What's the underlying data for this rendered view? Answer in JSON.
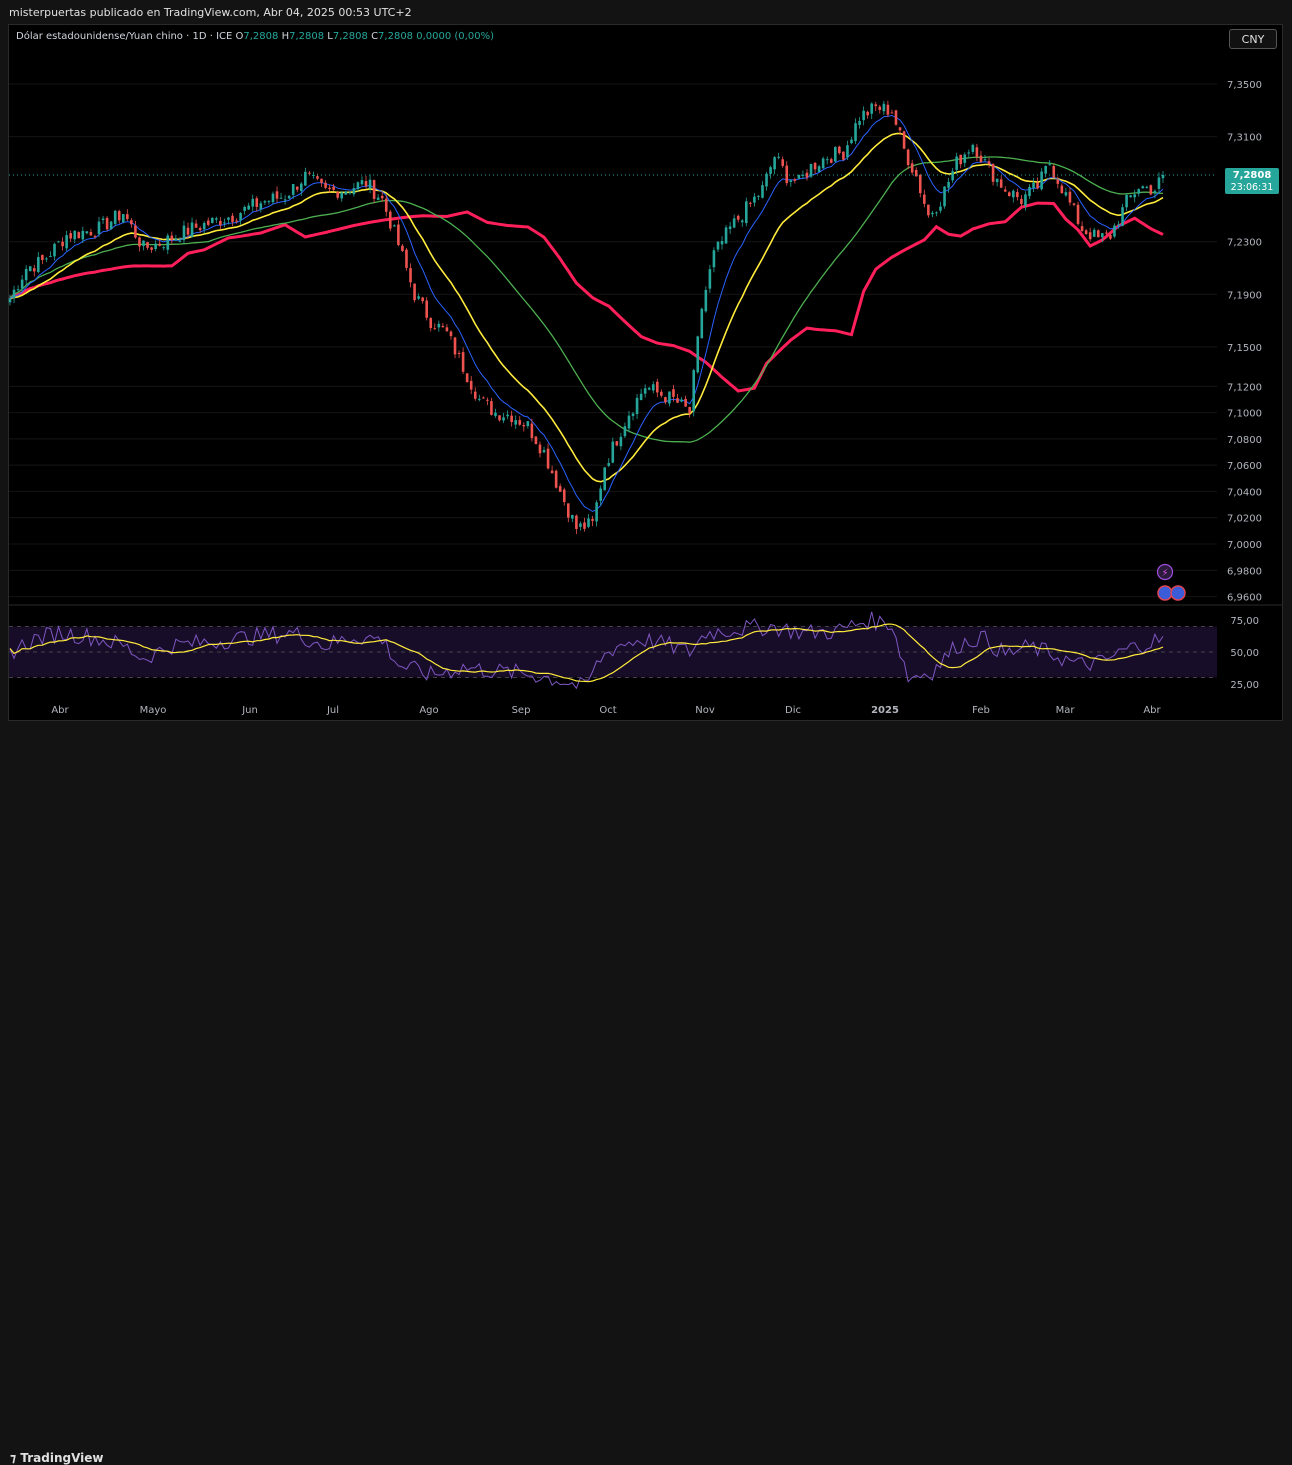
{
  "header": {
    "publisher": "misterpuertas publicado en TradingView.com, Abr 04, 2025 00:53 UTC+2"
  },
  "legend": {
    "symbol": "Dólar estadounidense/Yuan chino · 1D · ICE",
    "o_label": "O",
    "o": "7,2808",
    "h_label": "H",
    "h": "7,2808",
    "l_label": "L",
    "l": "7,2808",
    "c_label": "C",
    "c": "7,2808",
    "change": "0,0000 (0,00%)"
  },
  "currency_button": "CNY",
  "price_tag": {
    "price": "7,2808",
    "countdown": "23:06:31"
  },
  "footer": {
    "brand": "TradingView"
  },
  "colors": {
    "up": "#26a69a",
    "down": "#ef5350",
    "ema_fast": "#2962ff",
    "ema_mid": "#ffeb3b",
    "sma_slow": "#4caf50",
    "sma_long": "#ff1f5a",
    "rsi": "#7e57c2",
    "rsi_ma": "#ffeb3b"
  },
  "icons": [
    "lightning-icon",
    "flag-icon"
  ],
  "chart_data": {
    "type": "candlestick",
    "price_axis_ticks": [
      "7,3500",
      "7,3100",
      "7,2300",
      "7,1900",
      "7,1500",
      "7,1200",
      "7,1000",
      "7,0800",
      "7,0600",
      "7,0400",
      "7,0200",
      "7,0000",
      "6,9800",
      "6,9600"
    ],
    "rsi_axis_ticks": [
      "75,00",
      "50,00",
      "25,00"
    ],
    "time_ticks": [
      "Abr",
      "Mayo",
      "Jun",
      "Jul",
      "Ago",
      "Sep",
      "Oct",
      "Nov",
      "Dic",
      "2025",
      "Feb",
      "Mar",
      "Abr"
    ],
    "price_keypoints": [
      [
        0,
        7.187
      ],
      [
        4,
        7.21
      ],
      [
        8,
        7.215
      ],
      [
        14,
        7.235
      ],
      [
        22,
        7.24
      ],
      [
        28,
        7.252
      ],
      [
        33,
        7.225
      ],
      [
        38,
        7.23
      ],
      [
        45,
        7.24
      ],
      [
        55,
        7.25
      ],
      [
        62,
        7.26
      ],
      [
        68,
        7.265
      ],
      [
        73,
        7.28
      ],
      [
        78,
        7.268
      ],
      [
        83,
        7.27
      ],
      [
        88,
        7.275
      ],
      [
        92,
        7.262
      ],
      [
        96,
        7.228
      ],
      [
        100,
        7.19
      ],
      [
        104,
        7.17
      ],
      [
        108,
        7.16
      ],
      [
        112,
        7.135
      ],
      [
        116,
        7.11
      ],
      [
        120,
        7.1
      ],
      [
        124,
        7.098
      ],
      [
        128,
        7.09
      ],
      [
        132,
        7.07
      ],
      [
        136,
        7.04
      ],
      [
        140,
        7.012
      ],
      [
        144,
        7.015
      ],
      [
        147,
        7.06
      ],
      [
        150,
        7.08
      ],
      [
        153,
        7.1
      ],
      [
        157,
        7.12
      ],
      [
        160,
        7.115
      ],
      [
        164,
        7.11
      ],
      [
        168,
        7.1
      ],
      [
        171,
        7.18
      ],
      [
        174,
        7.22
      ],
      [
        178,
        7.24
      ],
      [
        182,
        7.255
      ],
      [
        186,
        7.27
      ],
      [
        189,
        7.295
      ],
      [
        192,
        7.28
      ],
      [
        195,
        7.275
      ],
      [
        198,
        7.287
      ],
      [
        202,
        7.295
      ],
      [
        206,
        7.298
      ],
      [
        210,
        7.325
      ],
      [
        214,
        7.332
      ],
      [
        218,
        7.33
      ],
      [
        221,
        7.3
      ],
      [
        224,
        7.28
      ],
      [
        227,
        7.25
      ],
      [
        230,
        7.262
      ],
      [
        234,
        7.29
      ],
      [
        238,
        7.305
      ],
      [
        242,
        7.285
      ],
      [
        246,
        7.27
      ],
      [
        250,
        7.262
      ],
      [
        254,
        7.272
      ],
      [
        257,
        7.29
      ],
      [
        261,
        7.265
      ],
      [
        265,
        7.24
      ],
      [
        269,
        7.232
      ],
      [
        272,
        7.235
      ],
      [
        276,
        7.26
      ],
      [
        279,
        7.272
      ],
      [
        283,
        7.27
      ],
      [
        285,
        7.28
      ]
    ],
    "rsi_keypoints": [
      [
        0,
        50
      ],
      [
        6,
        60
      ],
      [
        12,
        65
      ],
      [
        20,
        62
      ],
      [
        28,
        55
      ],
      [
        33,
        45
      ],
      [
        40,
        55
      ],
      [
        50,
        58
      ],
      [
        60,
        62
      ],
      [
        70,
        65
      ],
      [
        78,
        55
      ],
      [
        85,
        62
      ],
      [
        92,
        60
      ],
      [
        96,
        40
      ],
      [
        104,
        32
      ],
      [
        112,
        38
      ],
      [
        120,
        35
      ],
      [
        128,
        33
      ],
      [
        136,
        28
      ],
      [
        142,
        22
      ],
      [
        146,
        45
      ],
      [
        150,
        55
      ],
      [
        156,
        60
      ],
      [
        162,
        56
      ],
      [
        168,
        50
      ],
      [
        172,
        65
      ],
      [
        180,
        68
      ],
      [
        188,
        70
      ],
      [
        196,
        65
      ],
      [
        204,
        66
      ],
      [
        212,
        75
      ],
      [
        218,
        72
      ],
      [
        222,
        30
      ],
      [
        228,
        35
      ],
      [
        234,
        55
      ],
      [
        240,
        62
      ],
      [
        246,
        48
      ],
      [
        252,
        54
      ],
      [
        258,
        48
      ],
      [
        264,
        40
      ],
      [
        270,
        42
      ],
      [
        276,
        52
      ],
      [
        282,
        58
      ],
      [
        285,
        60
      ]
    ],
    "ma_periods": {
      "ema_fast": 9,
      "ema_mid": 21,
      "sma_slow": 50,
      "sma_long": 200
    },
    "last_price": 7.2808
  }
}
